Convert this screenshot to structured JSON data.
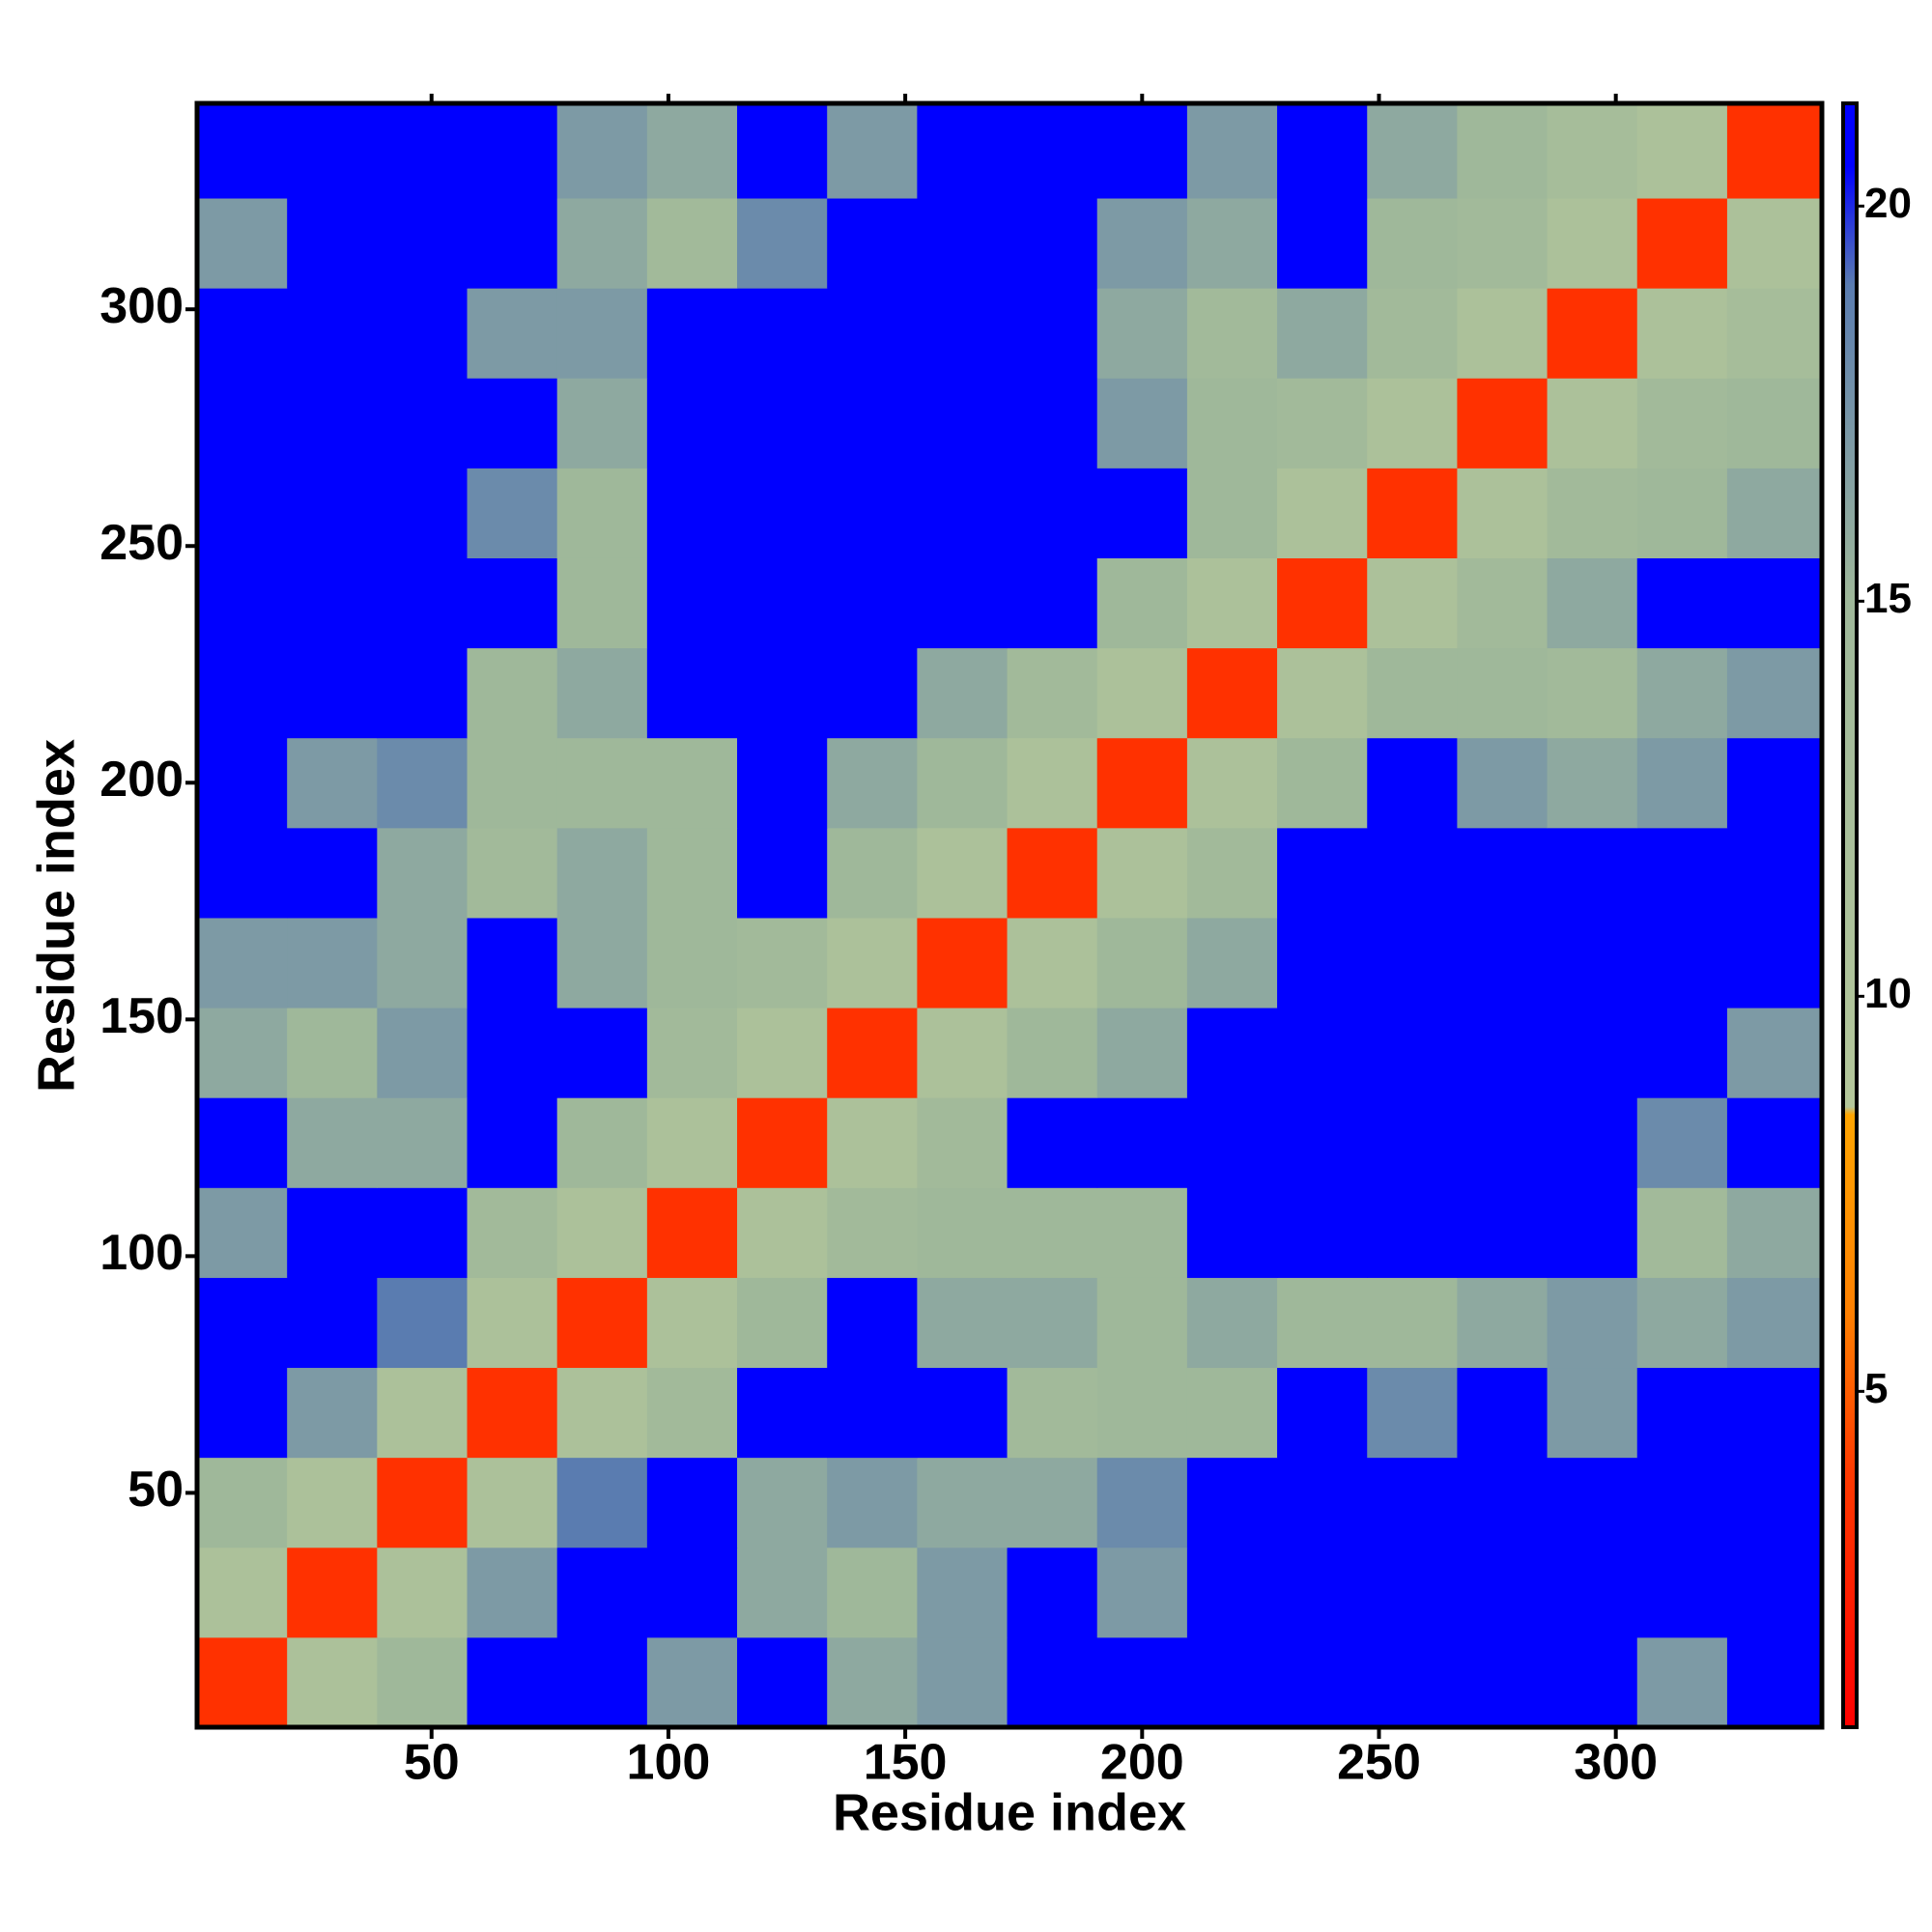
{
  "chart_data": {
    "type": "heatmap",
    "x_label": "Residue index",
    "y_label": "Residue index",
    "x_edges": [
      0.5,
      19.5,
      38.5,
      57.5,
      76.5,
      95.5,
      114.5,
      133.5,
      152.5,
      171.5,
      190.5,
      209.5,
      228.5,
      247.5,
      266.5,
      285.5,
      304.5,
      323.5,
      343.5
    ],
    "y_edges": [
      0.5,
      19.5,
      38.5,
      57.5,
      76.5,
      95.5,
      114.5,
      133.5,
      152.5,
      171.5,
      190.5,
      209.5,
      228.5,
      247.5,
      266.5,
      285.5,
      304.5,
      323.5,
      343.5
    ],
    "values": [
      [
        3.5,
        11,
        15,
        21,
        21,
        17,
        21,
        16,
        17,
        21,
        21,
        21,
        21,
        21,
        21,
        21,
        17,
        21
      ],
      [
        11,
        3.5,
        11,
        17,
        21,
        21,
        16,
        15,
        17,
        21,
        17,
        21,
        21,
        21,
        21,
        21,
        21,
        21
      ],
      [
        15,
        11,
        3.5,
        11,
        19,
        21,
        16,
        17,
        16,
        16,
        18,
        21,
        21,
        21,
        21,
        21,
        21,
        21
      ],
      [
        21,
        17,
        11,
        3.5,
        11,
        14,
        21,
        21,
        21,
        14,
        15,
        15,
        21,
        18,
        21,
        17,
        21,
        21
      ],
      [
        21,
        21,
        19,
        11,
        3.5,
        11,
        15,
        21,
        16,
        16,
        15,
        16,
        15,
        15,
        16,
        17,
        16,
        17
      ],
      [
        17,
        21,
        21,
        14,
        11,
        3.5,
        11,
        14,
        15,
        15,
        15,
        21,
        21,
        21,
        21,
        21,
        14,
        16
      ],
      [
        21,
        16,
        16,
        21,
        15,
        11,
        3.5,
        11,
        14,
        21,
        21,
        21,
        21,
        21,
        21,
        21,
        18,
        21
      ],
      [
        16,
        15,
        17,
        21,
        21,
        14,
        11,
        3.5,
        11,
        15,
        16,
        21,
        21,
        21,
        21,
        21,
        21,
        17
      ],
      [
        17,
        17,
        16,
        21,
        16,
        15,
        14,
        11,
        3.5,
        11,
        15,
        16,
        21,
        21,
        21,
        21,
        21,
        21
      ],
      [
        21,
        21,
        16,
        14,
        16,
        15,
        21,
        15,
        11,
        3.5,
        11,
        14,
        21,
        21,
        21,
        21,
        21,
        21
      ],
      [
        21,
        17,
        18,
        15,
        15,
        15,
        21,
        16,
        15,
        11,
        3.5,
        11,
        15,
        21,
        17,
        16,
        17,
        21
      ],
      [
        21,
        21,
        21,
        15,
        16,
        21,
        21,
        21,
        16,
        14,
        11,
        3.5,
        11,
        15,
        15,
        14,
        16,
        17
      ],
      [
        21,
        21,
        21,
        21,
        15,
        21,
        21,
        21,
        21,
        21,
        15,
        11,
        3.5,
        11,
        14,
        16,
        21,
        21
      ],
      [
        21,
        21,
        21,
        18,
        15,
        21,
        21,
        21,
        21,
        21,
        21,
        15,
        11,
        3.5,
        11,
        14,
        15,
        16
      ],
      [
        21,
        21,
        21,
        21,
        16,
        21,
        21,
        21,
        21,
        21,
        17,
        15,
        14,
        11,
        3.5,
        11,
        14,
        15
      ],
      [
        21,
        21,
        21,
        17,
        17,
        21,
        21,
        21,
        21,
        21,
        16,
        14,
        16,
        14,
        11,
        3.5,
        11,
        13
      ],
      [
        17,
        21,
        21,
        21,
        16,
        14,
        18,
        21,
        21,
        21,
        17,
        16,
        21,
        15,
        14,
        11,
        3.5,
        11
      ],
      [
        21,
        21,
        21,
        21,
        17,
        16,
        21,
        17,
        21,
        21,
        21,
        17,
        21,
        16,
        15,
        13,
        11,
        3.5
      ]
    ],
    "xlim": [
      0.5,
      343.5
    ],
    "ylim": [
      0.5,
      343.5
    ],
    "xticks": [
      50,
      100,
      150,
      200,
      250,
      300
    ],
    "yticks": [
      50,
      100,
      150,
      200,
      250,
      300
    ],
    "colorbar_lim": [
      0.75,
      21.3
    ],
    "colorbar_ticks": [
      5,
      10,
      15,
      20
    ],
    "colorscale": [
      {
        "value": 0.75,
        "color": "#ff0000"
      },
      {
        "value": 4,
        "color": "#ff3a00"
      },
      {
        "value": 6,
        "color": "#ff8000"
      },
      {
        "value": 8.5,
        "color": "#ffa500"
      },
      {
        "value": 8.6,
        "color": "#b4c79a"
      },
      {
        "value": 15,
        "color": "#9fb89a"
      },
      {
        "value": 19,
        "color": "#5a7cb0"
      },
      {
        "value": 20.5,
        "color": "#0000ff"
      },
      {
        "value": 21.3,
        "color": "#0000ff"
      }
    ]
  }
}
